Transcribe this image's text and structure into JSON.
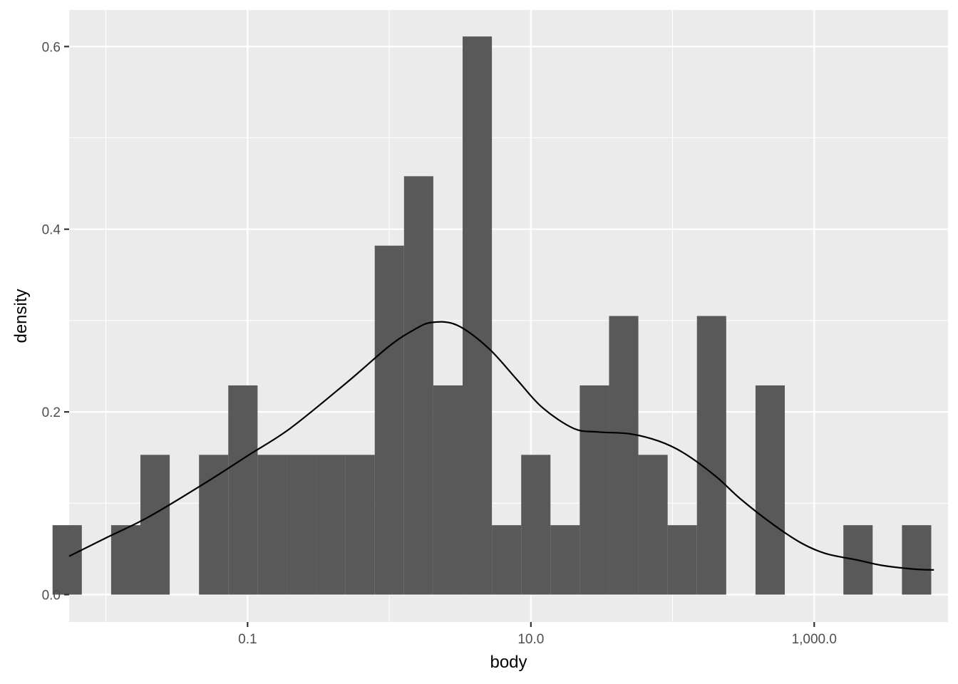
{
  "chart_data": {
    "type": "bar",
    "subtype": "histogram-with-density",
    "title": "",
    "xlabel": "body",
    "ylabel": "density",
    "x_scale": "log10",
    "xlim": [
      0.0055,
      8800
    ],
    "ylim": [
      -0.03,
      0.64
    ],
    "x_ticks": [
      {
        "value": 0.1,
        "label": "0.1"
      },
      {
        "value": 10,
        "label": "10.0"
      },
      {
        "value": 1000,
        "label": "1,000.0"
      }
    ],
    "x_minor_ticks": [
      0.01,
      1,
      100,
      10000
    ],
    "y_ticks": [
      {
        "value": 0,
        "label": "0.0"
      },
      {
        "value": 0.2,
        "label": "0.2"
      },
      {
        "value": 0.4,
        "label": "0.4"
      },
      {
        "value": 0.6,
        "label": "0.6"
      }
    ],
    "y_minor_ticks": [
      0.1,
      0.3,
      0.5
    ],
    "bin_start": 0.0042,
    "bin_end": 6700,
    "bin_count": 30,
    "values": [
      0.076,
      0,
      0.076,
      0.153,
      0,
      0.153,
      0.229,
      0.153,
      0.153,
      0.153,
      0.153,
      0.382,
      0.458,
      0.229,
      0.611,
      0.076,
      0.153,
      0.076,
      0.229,
      0.305,
      0.153,
      0.076,
      0.305,
      0,
      0.229,
      0,
      0,
      0.076,
      0,
      0.076
    ],
    "density_curve": {
      "x": [
        0.0055,
        0.01,
        0.02,
        0.05,
        0.1,
        0.2,
        0.5,
        1,
        1.5,
        2,
        3,
        5,
        8,
        12,
        20,
        30,
        50,
        80,
        120,
        200,
        300,
        500,
        800,
        1200,
        2000,
        3000,
        5000,
        7000
      ],
      "y": [
        0.042,
        0.062,
        0.085,
        0.122,
        0.152,
        0.182,
        0.232,
        0.272,
        0.29,
        0.298,
        0.295,
        0.27,
        0.235,
        0.205,
        0.182,
        0.178,
        0.176,
        0.168,
        0.155,
        0.13,
        0.105,
        0.078,
        0.057,
        0.045,
        0.038,
        0.032,
        0.028,
        0.027
      ]
    },
    "colors": {
      "panel": "#EBEBEB",
      "grid": "#FFFFFF",
      "bar": "#595959",
      "curve": "#000000"
    },
    "grid": true,
    "legend": "none"
  }
}
